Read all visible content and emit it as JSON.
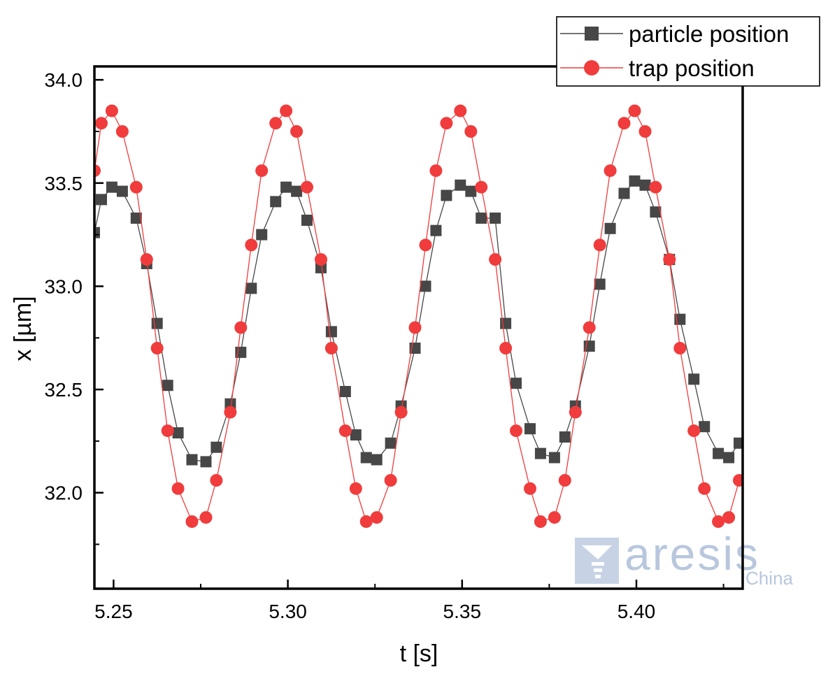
{
  "chart_data": {
    "type": "scatter",
    "xlabel": "t [s]",
    "ylabel": "x [µm]",
    "xlim": [
      5.2445,
      5.4305
    ],
    "ylim": [
      31.535,
      34.065
    ],
    "xticks": [
      5.25,
      5.3,
      5.35,
      5.4
    ],
    "xtick_labels": [
      "5.25",
      "5.30",
      "5.35",
      "5.40"
    ],
    "yticks": [
      32.0,
      32.5,
      33.0,
      33.5,
      34.0
    ],
    "ytick_labels": [
      "32.0",
      "32.5",
      "33.0",
      "33.5",
      "34.0"
    ],
    "grid": false,
    "legend_position": "top-right",
    "series": [
      {
        "name": "particle position",
        "color": "#474747",
        "marker": "square",
        "connected": true,
        "x": [
          5.2445,
          5.2465,
          5.2495,
          5.2525,
          5.2565,
          5.2595,
          5.2625,
          5.2655,
          5.2685,
          5.2725,
          5.2765,
          5.2795,
          5.2835,
          5.2865,
          5.2895,
          5.2925,
          5.2965,
          5.2995,
          5.3025,
          5.3055,
          5.3095,
          5.3125,
          5.3165,
          5.3195,
          5.3225,
          5.3255,
          5.3295,
          5.3325,
          5.3365,
          5.3395,
          5.3425,
          5.3455,
          5.3495,
          5.3525,
          5.3555,
          5.3595,
          5.3625,
          5.3655,
          5.3695,
          5.3725,
          5.3765,
          5.3795,
          5.3825,
          5.3865,
          5.3895,
          5.3925,
          5.3965,
          5.3995,
          5.4025,
          5.4055,
          5.4095,
          5.4125,
          5.4165,
          5.4195,
          5.4235,
          5.4265,
          5.4295
        ],
        "y": [
          33.26,
          33.42,
          33.48,
          33.46,
          33.33,
          33.11,
          32.82,
          32.52,
          32.29,
          32.16,
          32.15,
          32.22,
          32.43,
          32.68,
          32.99,
          33.25,
          33.41,
          33.48,
          33.46,
          33.32,
          33.09,
          32.78,
          32.49,
          32.28,
          32.17,
          32.16,
          32.24,
          32.42,
          32.7,
          33.0,
          33.27,
          33.44,
          33.49,
          33.46,
          33.33,
          33.33,
          32.82,
          32.53,
          32.31,
          32.19,
          32.17,
          32.27,
          32.42,
          32.71,
          33.01,
          33.28,
          33.45,
          33.51,
          33.49,
          33.36,
          33.13,
          32.84,
          32.55,
          32.32,
          32.19,
          32.17,
          32.24
        ]
      },
      {
        "name": "trap position",
        "color": "#f03c3c",
        "marker": "circle",
        "connected": true,
        "x": [
          5.2445,
          5.2465,
          5.2495,
          5.2525,
          5.2565,
          5.2595,
          5.2625,
          5.2655,
          5.2685,
          5.2725,
          5.2765,
          5.2795,
          5.2835,
          5.2865,
          5.2895,
          5.2925,
          5.2965,
          5.2995,
          5.3025,
          5.3055,
          5.3095,
          5.3125,
          5.3165,
          5.3195,
          5.3225,
          5.3255,
          5.3295,
          5.3325,
          5.3365,
          5.3395,
          5.3425,
          5.3455,
          5.3495,
          5.3525,
          5.3555,
          5.3595,
          5.3625,
          5.3655,
          5.3695,
          5.3725,
          5.3765,
          5.3795,
          5.3825,
          5.3865,
          5.3895,
          5.3925,
          5.3965,
          5.3995,
          5.4025,
          5.4055,
          5.4095,
          5.4125,
          5.4165,
          5.4195,
          5.4235,
          5.4265,
          5.4295
        ],
        "y": [
          33.56,
          33.79,
          33.85,
          33.75,
          33.48,
          33.13,
          32.7,
          32.3,
          32.02,
          31.86,
          31.88,
          32.06,
          32.39,
          32.8,
          33.2,
          33.56,
          33.79,
          33.85,
          33.75,
          33.48,
          33.13,
          32.7,
          32.3,
          32.02,
          31.86,
          31.88,
          32.06,
          32.39,
          32.8,
          33.2,
          33.56,
          33.79,
          33.85,
          33.75,
          33.48,
          33.13,
          32.7,
          32.3,
          32.02,
          31.86,
          31.88,
          32.06,
          32.39,
          32.8,
          33.2,
          33.56,
          33.79,
          33.85,
          33.75,
          33.48,
          33.13,
          32.7,
          32.3,
          32.02,
          31.86,
          31.88,
          32.06
        ]
      }
    ]
  },
  "watermark": {
    "brand": "aresis",
    "sub": "China"
  }
}
